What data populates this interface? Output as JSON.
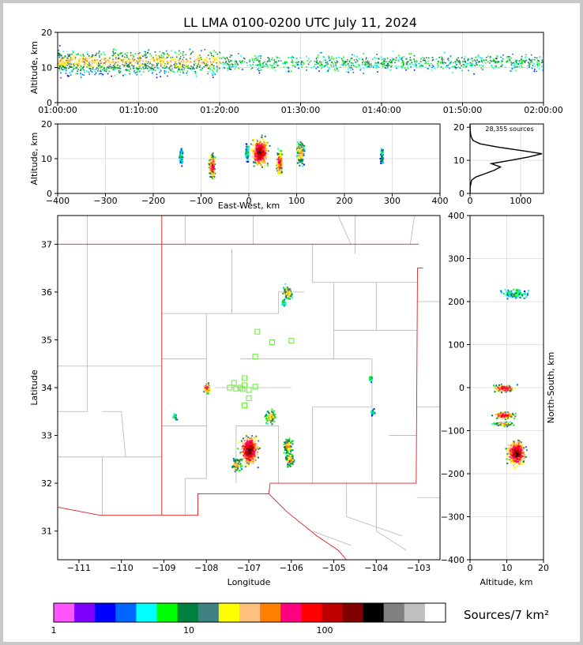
{
  "chart_data": [
    {
      "type": "heatmap",
      "panel": "altitude-vs-time",
      "title": "LL LMA 0100-0200 UTC July 11, 2024",
      "ylabel": "Altitude, km",
      "ylim": [
        0,
        20
      ],
      "yticks": [
        "0",
        "10",
        "20"
      ],
      "xticks": [
        "01:00:00",
        "01:10:00",
        "01:20:00",
        "01:30:00",
        "01:40:00",
        "01:50:00",
        "02:00:00"
      ],
      "xlim_minutes": [
        0,
        60
      ],
      "note_values": "source altitude mostly 5-16 km, core 9-14 km throughout the hour, densest 01:00-01:20"
    },
    {
      "type": "heatmap",
      "panel": "altitude-vs-east-west",
      "ylabel": "Altitude, km",
      "xlabel": "East-West, km",
      "ylim": [
        0,
        20
      ],
      "xlim": [
        -400,
        400
      ],
      "yticks": [
        "0",
        "10",
        "20"
      ],
      "xticks": [
        "−400",
        "−300",
        "−200",
        "−100",
        "0",
        "100",
        "200",
        "300",
        "400"
      ],
      "clusters": [
        {
          "x": -143,
          "y": 11,
          "density": "low"
        },
        {
          "x": -78,
          "y": 8,
          "density": "high"
        },
        {
          "x": -5,
          "y": 12,
          "density": "low"
        },
        {
          "x": 22,
          "y": 12,
          "density": "very high"
        },
        {
          "x": 63,
          "y": 9,
          "density": "high"
        },
        {
          "x": 107,
          "y": 12,
          "density": "medium"
        },
        {
          "x": 277,
          "y": 11,
          "density": "low"
        }
      ]
    },
    {
      "type": "line",
      "panel": "altitude-histogram",
      "annotation": "28,355 sources",
      "xlim": [
        0,
        1450
      ],
      "ylim": [
        0,
        21
      ],
      "xticks": [
        "0",
        "1000"
      ],
      "yticks": [
        "0",
        "10",
        "20"
      ],
      "series": [
        {
          "points": [
            [
              0,
              0
            ],
            [
              5,
              2
            ],
            [
              30,
              4
            ],
            [
              120,
              5
            ],
            [
              300,
              6
            ],
            [
              480,
              7
            ],
            [
              600,
              8
            ],
            [
              420,
              9
            ],
            [
              800,
              10
            ],
            [
              1150,
              11
            ],
            [
              1420,
              12
            ],
            [
              1000,
              13
            ],
            [
              550,
              14
            ],
            [
              200,
              15
            ],
            [
              60,
              16
            ],
            [
              25,
              17
            ],
            [
              10,
              18
            ],
            [
              5,
              19
            ],
            [
              2,
              20
            ],
            [
              0,
              21
            ]
          ]
        }
      ]
    },
    {
      "type": "heatmap",
      "panel": "plan-view-map",
      "xlabel": "Longitude",
      "ylabel": "Latitude",
      "xlim": [
        -111.5,
        -102.5
      ],
      "ylim": [
        30.4,
        37.6
      ],
      "xticks": [
        "−111",
        "−110",
        "−109",
        "−108",
        "−107",
        "−106",
        "−105",
        "−104",
        "−103"
      ],
      "yticks": [
        "31",
        "32",
        "33",
        "34",
        "35",
        "36",
        "37"
      ],
      "clusters": [
        {
          "lon": -106.1,
          "lat": 36.0,
          "density": "medium"
        },
        {
          "lon": -106.2,
          "lat": 35.8,
          "density": "low"
        },
        {
          "lon": -108.0,
          "lat": 34.0,
          "density": "high"
        },
        {
          "lon": -108.75,
          "lat": 33.4,
          "density": "low"
        },
        {
          "lon": -106.5,
          "lat": 33.4,
          "density": "medium"
        },
        {
          "lon": -106.1,
          "lat": 32.8,
          "density": "medium"
        },
        {
          "lon": -106.05,
          "lat": 32.5,
          "density": "medium"
        },
        {
          "lon": -107.0,
          "lat": 32.7,
          "density": "very high"
        },
        {
          "lon": -107.3,
          "lat": 32.4,
          "density": "medium"
        },
        {
          "lon": -104.15,
          "lat": 34.2,
          "density": "low"
        },
        {
          "lon": -104.1,
          "lat": 33.5,
          "density": "low"
        }
      ],
      "stations": [
        [
          -106.8,
          35.17
        ],
        [
          -106.45,
          34.95
        ],
        [
          -106.0,
          34.98
        ],
        [
          -106.85,
          34.65
        ],
        [
          -107.35,
          34.1
        ],
        [
          -107.45,
          34.0
        ],
        [
          -107.1,
          34.2
        ],
        [
          -107.1,
          34.05
        ],
        [
          -107.3,
          33.98
        ],
        [
          -107.15,
          33.97
        ],
        [
          -107.0,
          33.95
        ],
        [
          -106.85,
          34.02
        ],
        [
          -107.0,
          33.78
        ],
        [
          -107.1,
          33.63
        ],
        [
          -107.2,
          34.0
        ]
      ]
    },
    {
      "type": "heatmap",
      "panel": "north-south-vs-altitude",
      "xlabel": "Altitude, km",
      "ylabel": "North-South, km",
      "xlim": [
        0,
        20
      ],
      "ylim": [
        -400,
        400
      ],
      "xticks": [
        "0",
        "10",
        "20"
      ],
      "yticks": [
        "−400",
        "−300",
        "−200",
        "−100",
        "0",
        "100",
        "200",
        "300",
        "400"
      ],
      "clusters": [
        {
          "x": 12,
          "y": 220,
          "density": "low"
        },
        {
          "x": 9,
          "y": 0,
          "density": "high"
        },
        {
          "x": 9,
          "y": -63,
          "density": "high"
        },
        {
          "x": 9,
          "y": -83,
          "density": "medium"
        },
        {
          "x": 12.5,
          "y": -150,
          "density": "very high"
        }
      ]
    }
  ],
  "colorbar": {
    "label": "Sources/7 km²",
    "tick_labels": [
      "1",
      "10",
      "100"
    ],
    "colors": [
      "#ff55ff",
      "#8000ff",
      "#0000ff",
      "#0066ff",
      "#00ffff",
      "#00ff00",
      "#008040",
      "#408080",
      "#ffff00",
      "#ffc080",
      "#ff8000",
      "#ff0080",
      "#ff0000",
      "#c00000",
      "#800000",
      "#000000",
      "#808080",
      "#c0c0c0",
      "#ffffff"
    ]
  }
}
